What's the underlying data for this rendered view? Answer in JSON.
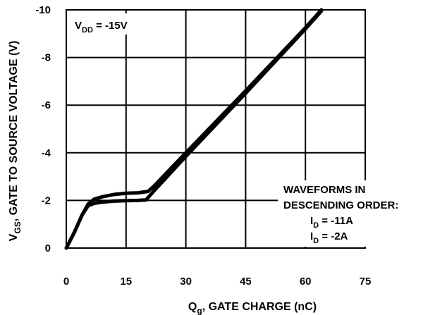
{
  "chart_data": {
    "type": "line",
    "xlabel": {
      "main": "Q",
      "sub": "g",
      "rest": ", GATE CHARGE (nC)"
    },
    "ylabel": {
      "main": "V",
      "sub": "GS",
      "rest": ", GATE TO SOURCE VOLTAGE (V)"
    },
    "xlim": [
      0,
      75
    ],
    "ylim": [
      0,
      -10
    ],
    "x_ticks": [
      0,
      15,
      30,
      45,
      60,
      75
    ],
    "y_ticks": [
      0,
      -2,
      -4,
      -6,
      -8,
      -10
    ],
    "x_tick_labels": [
      "0",
      "15",
      "30",
      "45",
      "60",
      "75"
    ],
    "y_tick_labels": [
      "0",
      "-2",
      "-4",
      "-6",
      "-8",
      "-10"
    ],
    "grid": true,
    "condition": {
      "main": "V",
      "sub": "DD",
      "rest": " = -15V"
    },
    "annotation": {
      "line1": "WAVEFORMS IN",
      "line2": "DESCENDING ORDER:",
      "item1": {
        "main": "I",
        "sub": "D",
        "rest": " = -11A"
      },
      "item2": {
        "main": "I",
        "sub": "D",
        "rest": " = -2A"
      }
    },
    "series": [
      {
        "name": "I_D = -11A",
        "color": "#000000",
        "points": [
          [
            0,
            0
          ],
          [
            2,
            -0.65
          ],
          [
            4,
            -1.4
          ],
          [
            5.5,
            -1.85
          ],
          [
            7,
            -2.05
          ],
          [
            9,
            -2.15
          ],
          [
            12,
            -2.25
          ],
          [
            15,
            -2.3
          ],
          [
            18,
            -2.32
          ],
          [
            20.5,
            -2.38
          ],
          [
            22,
            -2.6
          ],
          [
            30,
            -4.0
          ],
          [
            45,
            -6.6
          ],
          [
            60,
            -9.25
          ],
          [
            64,
            -10.0
          ]
        ]
      },
      {
        "name": "I_D = -2A",
        "color": "#000000",
        "points": [
          [
            0,
            0
          ],
          [
            2,
            -0.65
          ],
          [
            4,
            -1.4
          ],
          [
            5.5,
            -1.78
          ],
          [
            7,
            -1.88
          ],
          [
            9,
            -1.93
          ],
          [
            12,
            -1.97
          ],
          [
            15,
            -1.99
          ],
          [
            18,
            -2.0
          ],
          [
            20,
            -2.02
          ],
          [
            22,
            -2.4
          ],
          [
            30,
            -3.85
          ],
          [
            45,
            -6.5
          ],
          [
            60,
            -9.2
          ],
          [
            64,
            -9.95
          ]
        ]
      }
    ]
  }
}
